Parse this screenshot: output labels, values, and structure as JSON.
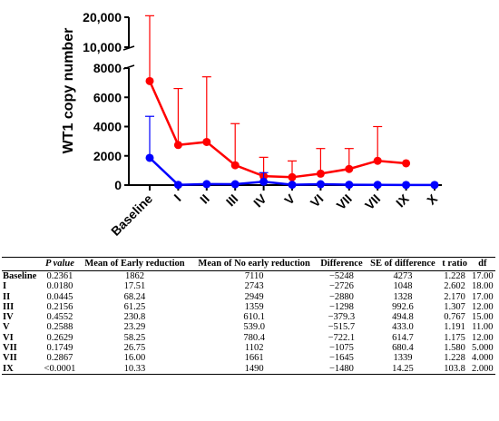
{
  "chart_data": {
    "type": "line",
    "ylabel": "WT1 copy number",
    "categories": [
      "Baseline",
      "I",
      "II",
      "III",
      "IV",
      "V",
      "VI",
      "VII",
      "VII",
      "IX",
      "X"
    ],
    "y_ticks_lower": [
      "0",
      "2000",
      "4000",
      "6000",
      "8000"
    ],
    "y_ticks_upper": [
      "10,000",
      "20,000"
    ],
    "y_axis_break": true,
    "ylim_lower": [
      0,
      8000
    ],
    "ylim_upper": [
      10000,
      20000
    ],
    "series": [
      {
        "color": "#ff0000",
        "values": [
          7110,
          2743,
          2949,
          1359,
          610.1,
          539.0,
          780.4,
          1102,
          1661,
          1490,
          null
        ],
        "error_upper": [
          20500,
          6600,
          7400,
          4200,
          1900,
          1650,
          2500,
          2500,
          4000,
          null,
          null
        ]
      },
      {
        "color": "#0000ff",
        "values": [
          1862,
          17.51,
          68.24,
          61.25,
          230.8,
          23.29,
          58.25,
          26.75,
          16.0,
          10.33,
          10
        ],
        "error_upper": [
          4700,
          null,
          null,
          null,
          850,
          null,
          null,
          null,
          null,
          null,
          null
        ]
      }
    ]
  },
  "table": {
    "headers": [
      "",
      "P value",
      "Mean of Early reduction",
      "Mean of No early reduction",
      "Difference",
      "SE of difference",
      "t ratio",
      "df"
    ],
    "rows": [
      [
        "Baseline",
        "0.2361",
        "1862",
        "7110",
        "−5248",
        "4273",
        "1.228",
        "17.00"
      ],
      [
        "I",
        "0.0180",
        "17.51",
        "2743",
        "−2726",
        "1048",
        "2.602",
        "18.00"
      ],
      [
        "II",
        "0.0445",
        "68.24",
        "2949",
        "−2880",
        "1328",
        "2.170",
        "17.00"
      ],
      [
        "III",
        "0.2156",
        "61.25",
        "1359",
        "−1298",
        "992.6",
        "1.307",
        "12.00"
      ],
      [
        "IV",
        "0.4552",
        "230.8",
        "610.1",
        "−379.3",
        "494.8",
        "0.767",
        "15.00"
      ],
      [
        "V",
        "0.2588",
        "23.29",
        "539.0",
        "−515.7",
        "433.0",
        "1.191",
        "11.00"
      ],
      [
        "VI",
        "0.2629",
        "58.25",
        "780.4",
        "−722.1",
        "614.7",
        "1.175",
        "12.00"
      ],
      [
        "VII",
        "0.1749",
        "26.75",
        "1102",
        "−1075",
        "680.4",
        "1.580",
        "5.000"
      ],
      [
        "VII",
        "0.2867",
        "16.00",
        "1661",
        "−1645",
        "1339",
        "1.228",
        "4.000"
      ],
      [
        "IX",
        "<0.0001",
        "10.33",
        "1490",
        "−1480",
        "14.25",
        "103.8",
        "2.000"
      ]
    ]
  }
}
